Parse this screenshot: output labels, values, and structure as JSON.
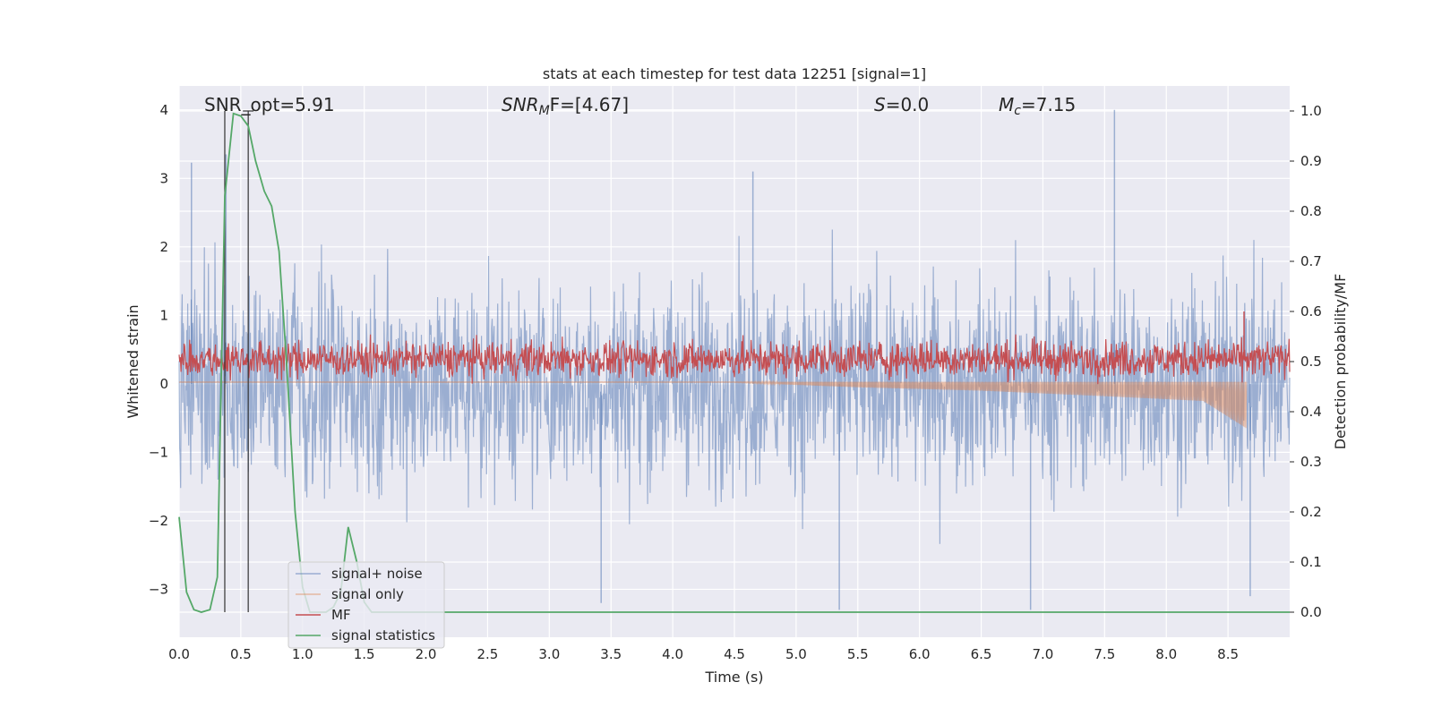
{
  "chart_data": {
    "type": "line",
    "title": "stats at each timestep for test data 12251 [signal=1]",
    "xlabel": "Time (s)",
    "ylabel_left": "Whitened strain",
    "ylabel_right": "Detection probability/MF",
    "xlim": [
      0,
      9.0
    ],
    "ylim_left": [
      -3.7,
      4.35
    ],
    "ylim_right": [
      -0.05,
      1.05
    ],
    "x_ticks": [
      "0.0",
      "0.5",
      "1.0",
      "1.5",
      "2.0",
      "2.5",
      "3.0",
      "3.5",
      "4.0",
      "4.5",
      "5.0",
      "5.5",
      "6.0",
      "6.5",
      "7.0",
      "7.5",
      "8.0",
      "8.5"
    ],
    "y_ticks_left": [
      "−3",
      "−2",
      "−1",
      "0",
      "1",
      "2",
      "3",
      "4"
    ],
    "y_ticks_right": [
      "0.0",
      "0.1",
      "0.2",
      "0.3",
      "0.4",
      "0.5",
      "0.6",
      "0.7",
      "0.8",
      "0.9",
      "1.0"
    ],
    "grid": true,
    "legend_position": "lower-left",
    "annotations": [
      "SNR_opt=5.91",
      "SNR",
      "M",
      "F=[4.67]",
      "S",
      "=0.0",
      "M",
      "c",
      "=7.15"
    ],
    "colors": {
      "background": "#eaeaf2",
      "grid": "#ffffff",
      "signal_noise": "#4c72b0",
      "signal_only": "#dd8452",
      "mf": "#c44e52",
      "signal_statistics": "#55a868",
      "vline": "#333333"
    },
    "series": [
      {
        "name": "signal+ noise",
        "axis": "left",
        "x_range": [
          0,
          9.0
        ],
        "typical_envelope": [
          -2.2,
          2.3
        ],
        "peak_points": [
          [
            0.1,
            3.23
          ],
          [
            0.38,
            3.35
          ],
          [
            4.65,
            3.1
          ],
          [
            7.58,
            4.0
          ],
          [
            5.35,
            -3.3
          ],
          [
            6.9,
            -3.3
          ],
          [
            3.42,
            -3.2
          ],
          [
            8.68,
            -3.1
          ]
        ]
      },
      {
        "name": "signal only",
        "axis": "left",
        "x_range": [
          0,
          8.65
        ],
        "envelope_points": [
          [
            4.5,
            0.02
          ],
          [
            5.5,
            -0.05
          ],
          [
            6.5,
            -0.1
          ],
          [
            7.5,
            -0.18
          ],
          [
            8.3,
            -0.25
          ],
          [
            8.65,
            -0.65
          ]
        ]
      },
      {
        "name": "MF",
        "axis": "right",
        "x_range": [
          0,
          9.0
        ],
        "typical_envelope": [
          0.46,
          0.55
        ],
        "peak_points": [
          [
            8.63,
            0.6
          ]
        ]
      },
      {
        "name": "signal statistics",
        "axis": "right",
        "x": [
          0.0,
          0.06,
          0.12,
          0.18,
          0.25,
          0.31,
          0.37,
          0.44,
          0.5,
          0.56,
          0.62,
          0.69,
          0.75,
          0.81,
          0.87,
          0.94,
          1.0,
          1.06,
          1.12,
          1.19,
          1.25,
          1.31,
          1.37,
          1.44,
          1.5,
          1.56,
          1.62,
          1.75,
          2.0,
          3.0,
          4.0,
          5.0,
          6.0,
          7.0,
          8.0,
          9.0
        ],
        "y": [
          0.19,
          0.04,
          0.005,
          0.0,
          0.005,
          0.07,
          0.83,
          0.995,
          0.99,
          0.97,
          0.9,
          0.84,
          0.81,
          0.72,
          0.5,
          0.2,
          0.05,
          0.0,
          0.0,
          0.0,
          0.01,
          0.04,
          0.17,
          0.1,
          0.02,
          0.0,
          0.0,
          0.0,
          0.0,
          0.0,
          0.0,
          0.0,
          0.0,
          0.0,
          0.0,
          0.0
        ]
      }
    ],
    "vlines": [
      0.37,
      0.56
    ]
  }
}
